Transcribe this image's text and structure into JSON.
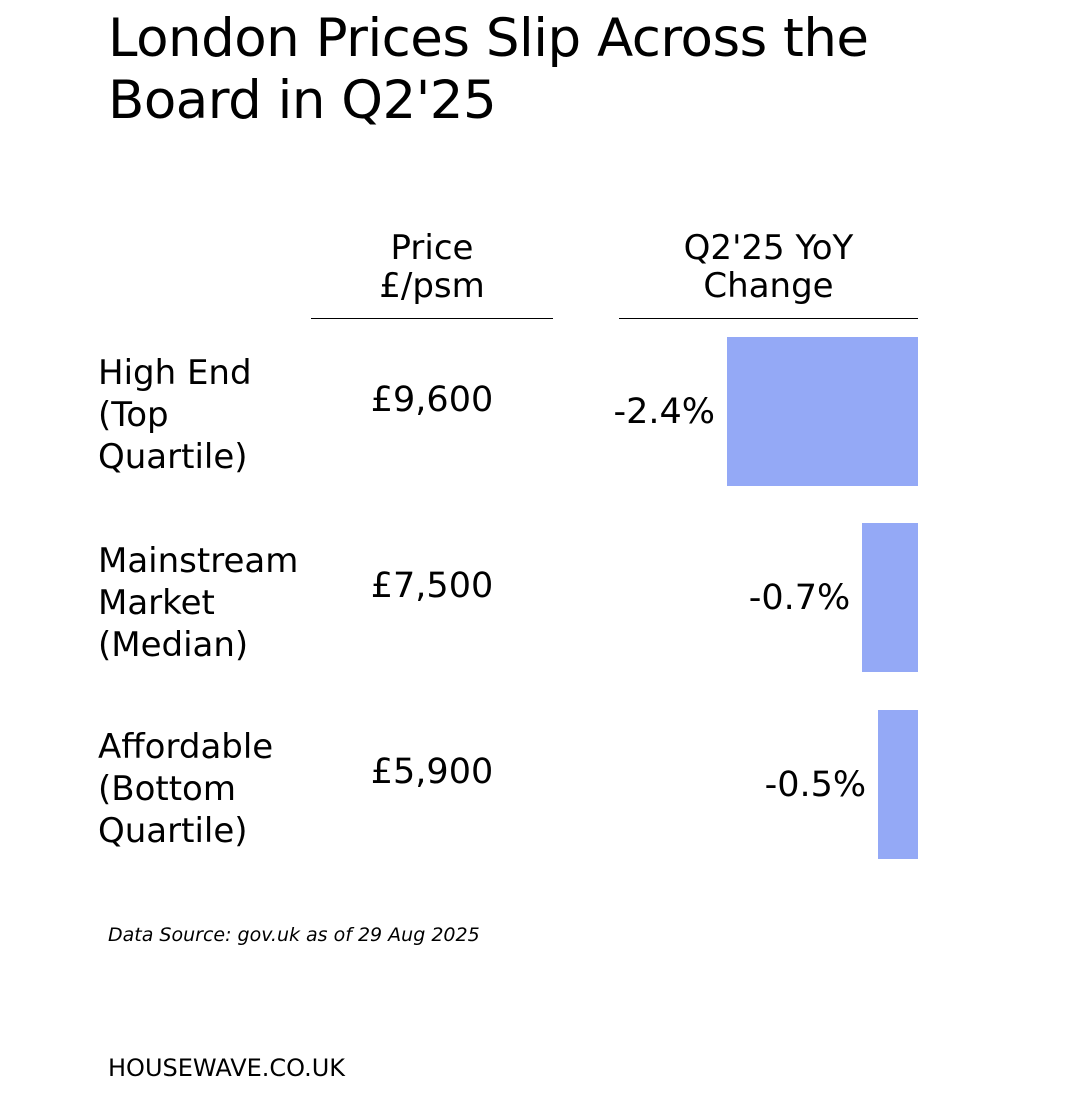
{
  "title": "London Prices Slip Across the Board in Q2'25",
  "columns": {
    "price_header": [
      "Price",
      "£/psm"
    ],
    "change_header": [
      "Q2'25 YoY",
      "Change"
    ]
  },
  "rows": [
    {
      "label": [
        "High End",
        "(Top",
        "Quartile)"
      ],
      "price": "£9,600",
      "change_label": "-2.4%"
    },
    {
      "label": [
        "Mainstream",
        "Market",
        "(Median)"
      ],
      "price": "£7,500",
      "change_label": "-0.7%"
    },
    {
      "label": [
        "Affordable",
        "(Bottom",
        "Quartile)"
      ],
      "price": "£5,900",
      "change_label": "-0.5%"
    }
  ],
  "source": "Data Source: gov.uk as of 29 Aug 2025",
  "brand": "HOUSEWAVE.CO.UK",
  "colors": {
    "bar": "#94a9f6",
    "text": "#000000",
    "background": "#ffffff"
  },
  "chart_data": {
    "type": "table",
    "title": "London Prices Slip Across the Board in Q2'25",
    "columns": [
      "Price £/psm",
      "Q2'25 YoY Change"
    ],
    "categories": [
      "High End (Top Quartile)",
      "Mainstream Market (Median)",
      "Affordable (Bottom Quartile)"
    ],
    "series": [
      {
        "name": "Price £/psm",
        "values": [
          9600,
          7500,
          5900
        ]
      },
      {
        "name": "Q2'25 YoY Change",
        "values": [
          -2.4,
          -0.7,
          -0.5
        ]
      }
    ],
    "unit": "%"
  }
}
